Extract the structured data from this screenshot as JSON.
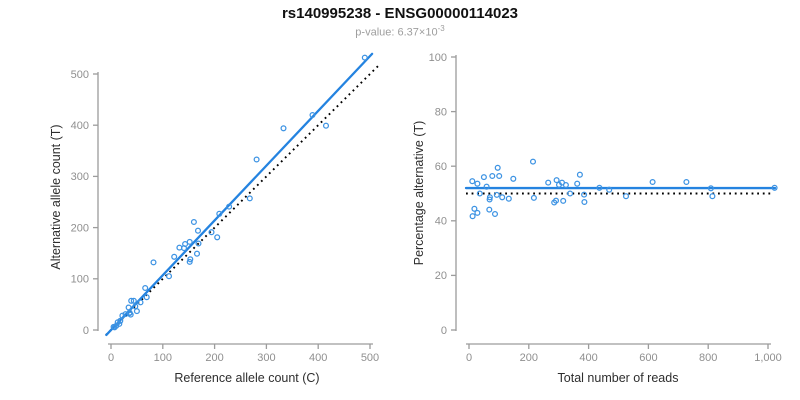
{
  "header": {
    "title": "rs140995238 - ENSG00000114023",
    "pvalue_prefix": "p-value: 6.37×10",
    "pvalue_exponent": "-3"
  },
  "colors": {
    "fit_line": "#2483e0",
    "point_stroke": "#3d93e3",
    "identity_line": "#000000",
    "axis": "#9c9c9c",
    "tick_label": "#8f8f8f",
    "axis_title": "#2e2e2e"
  },
  "chart_data": [
    {
      "id": "allele-counts-scatter",
      "type": "scatter",
      "xlabel": "Reference allele count (C)",
      "ylabel": "Alternative allele count (T)",
      "xlim": [
        0,
        500
      ],
      "ylim": [
        0,
        500
      ],
      "xticks": [
        0,
        100,
        200,
        300,
        400,
        500
      ],
      "xtick_labels": [
        "0",
        "100",
        "200",
        "300",
        "400",
        "500"
      ],
      "yticks": [
        0,
        100,
        200,
        300,
        400,
        500
      ],
      "ytick_labels": [
        "0",
        "100",
        "200",
        "300",
        "400",
        "500"
      ],
      "grid": false,
      "legend": "none",
      "fit_line": {
        "style": "solid",
        "slope": 1.07,
        "intercept": 0
      },
      "reference_line": {
        "style": "dotted",
        "slope": 1,
        "intercept": 0
      },
      "points": [
        [
          5,
          6
        ],
        [
          7,
          5
        ],
        [
          10,
          8
        ],
        [
          13,
          15
        ],
        [
          16,
          12
        ],
        [
          18,
          18
        ],
        [
          22,
          28
        ],
        [
          28,
          31
        ],
        [
          38,
          30
        ],
        [
          36,
          34
        ],
        [
          36,
          33
        ],
        [
          34,
          44
        ],
        [
          50,
          37
        ],
        [
          47,
          46
        ],
        [
          39,
          57
        ],
        [
          44,
          57
        ],
        [
          57,
          54
        ],
        [
          69,
          64
        ],
        [
          66,
          82
        ],
        [
          82,
          132
        ],
        [
          112,
          105
        ],
        [
          122,
          143
        ],
        [
          152,
          133
        ],
        [
          153,
          138
        ],
        [
          132,
          161
        ],
        [
          141,
          160
        ],
        [
          143,
          168
        ],
        [
          166,
          149
        ],
        [
          152,
          172
        ],
        [
          169,
          169
        ],
        [
          168,
          194
        ],
        [
          160,
          211
        ],
        [
          194,
          191
        ],
        [
          205,
          181
        ],
        [
          209,
          227
        ],
        [
          228,
          241
        ],
        [
          268,
          257
        ],
        [
          281,
          333
        ],
        [
          333,
          394
        ],
        [
          389,
          420
        ],
        [
          415,
          399
        ],
        [
          490,
          532
        ]
      ]
    },
    {
      "id": "percentage-alternative-scatter",
      "type": "scatter",
      "xlabel": "Total number of reads",
      "ylabel": "Percentage alternative (T)",
      "xlim": [
        0,
        1022
      ],
      "ylim": [
        0,
        100
      ],
      "xticks": [
        0,
        200,
        400,
        600,
        800,
        1000
      ],
      "xtick_labels": [
        "0",
        "200",
        "400",
        "600",
        "800",
        "1,000"
      ],
      "yticks": [
        0,
        20,
        40,
        60,
        80,
        100
      ],
      "ytick_labels": [
        "0",
        "20",
        "40",
        "60",
        "80",
        "100"
      ],
      "grid": false,
      "legend": "none",
      "fit_line": {
        "style": "solid",
        "y": 52
      },
      "reference_line": {
        "style": "dotted",
        "y": 50
      },
      "points": [
        [
          11,
          54.5
        ],
        [
          12,
          41.7
        ],
        [
          18,
          44.4
        ],
        [
          28,
          53.6
        ],
        [
          28,
          42.9
        ],
        [
          36,
          50
        ],
        [
          50,
          56
        ],
        [
          59,
          52.5
        ],
        [
          68,
          44.1
        ],
        [
          70,
          48.6
        ],
        [
          69,
          47.8
        ],
        [
          78,
          56.4
        ],
        [
          87,
          42.5
        ],
        [
          93,
          49.5
        ],
        [
          96,
          59.4
        ],
        [
          101,
          56.4
        ],
        [
          111,
          48.6
        ],
        [
          133,
          48.1
        ],
        [
          148,
          55.4
        ],
        [
          214,
          61.7
        ],
        [
          217,
          48.4
        ],
        [
          265,
          54
        ],
        [
          285,
          46.7
        ],
        [
          291,
          47.4
        ],
        [
          293,
          54.9
        ],
        [
          301,
          53.2
        ],
        [
          311,
          54
        ],
        [
          315,
          47.3
        ],
        [
          324,
          53.1
        ],
        [
          338,
          50
        ],
        [
          362,
          53.6
        ],
        [
          371,
          56.9
        ],
        [
          385,
          49.6
        ],
        [
          386,
          46.9
        ],
        [
          436,
          52.1
        ],
        [
          469,
          51.4
        ],
        [
          525,
          49
        ],
        [
          614,
          54.2
        ],
        [
          727,
          54.2
        ],
        [
          809,
          51.9
        ],
        [
          814,
          49
        ],
        [
          1022,
          52.1
        ]
      ]
    }
  ]
}
